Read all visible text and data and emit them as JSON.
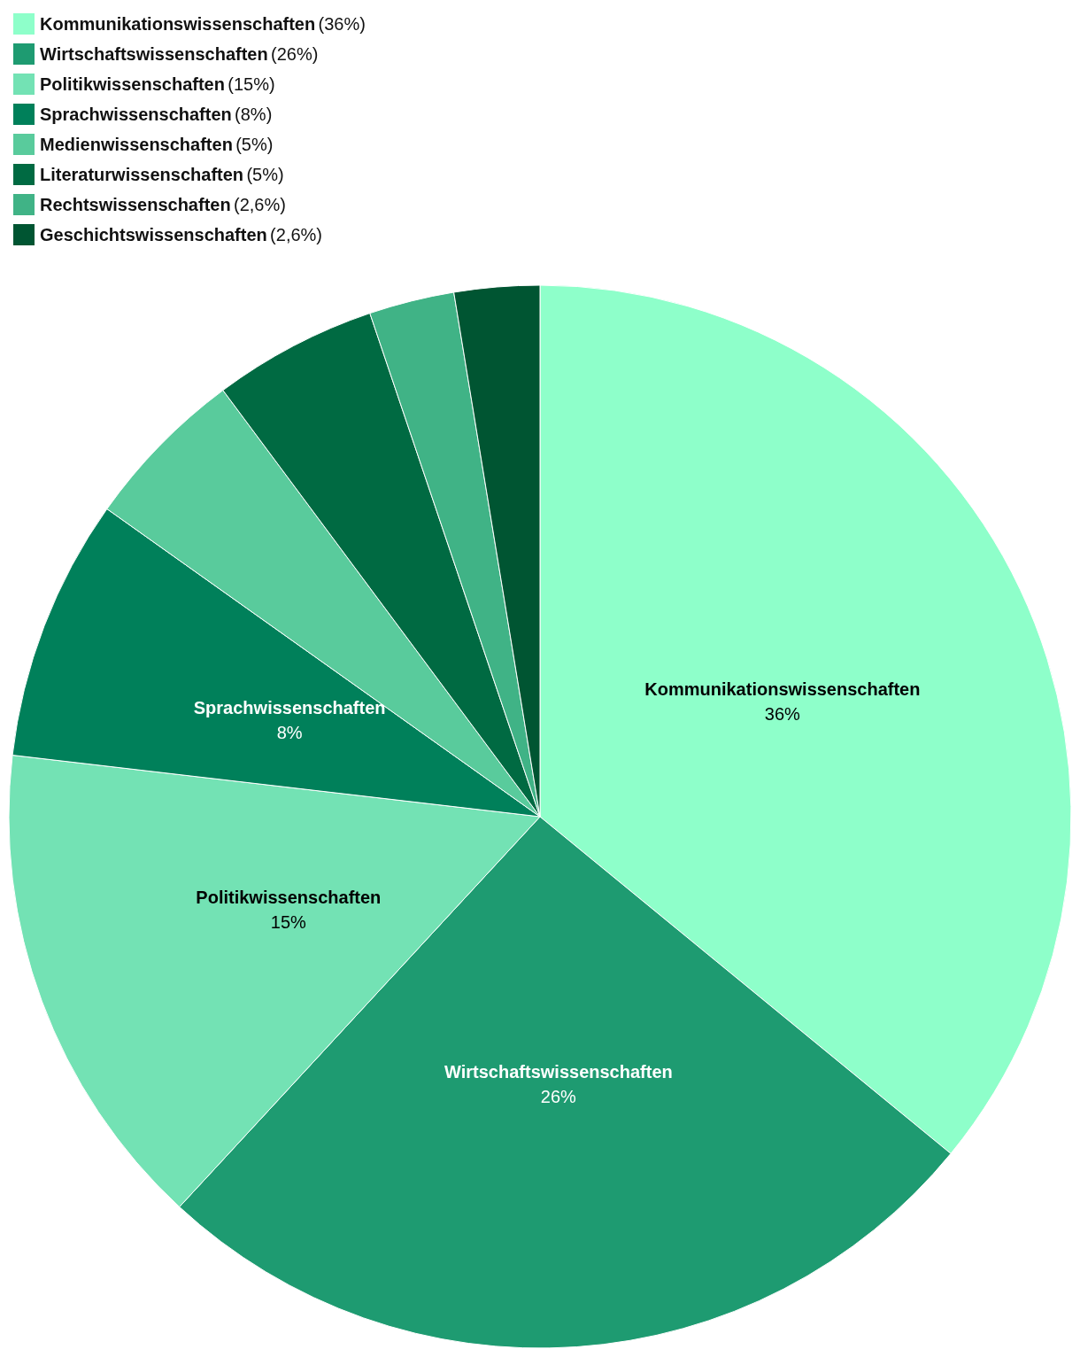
{
  "chart_data": {
    "type": "pie",
    "categories": [
      "Kommunikationswissenschaften",
      "Wirtschaftswissenschaften",
      "Politikwissenschaften",
      "Sprachwissenschaften",
      "Medienwissenschaften",
      "Literaturwissenschaften",
      "Rechtswissenschaften",
      "Geschichtswissenschaften"
    ],
    "values": [
      36,
      26,
      15,
      8,
      5,
      5,
      2.6,
      2.6
    ],
    "value_labels": [
      "36%",
      "26%",
      "15%",
      "8%",
      null,
      null,
      null,
      null
    ],
    "annotations": [
      "(36%)",
      "(26%)",
      "(15%)",
      "(8%)",
      "(5%)",
      "(5%)",
      "(2,6%)",
      "(2,6%)"
    ],
    "colors": [
      "#8effca",
      "#1e9b71",
      "#73e2b4",
      "#00805a",
      "#59cb9c",
      "#006a42",
      "#40b386",
      "#005532"
    ],
    "legend": "top left"
  }
}
